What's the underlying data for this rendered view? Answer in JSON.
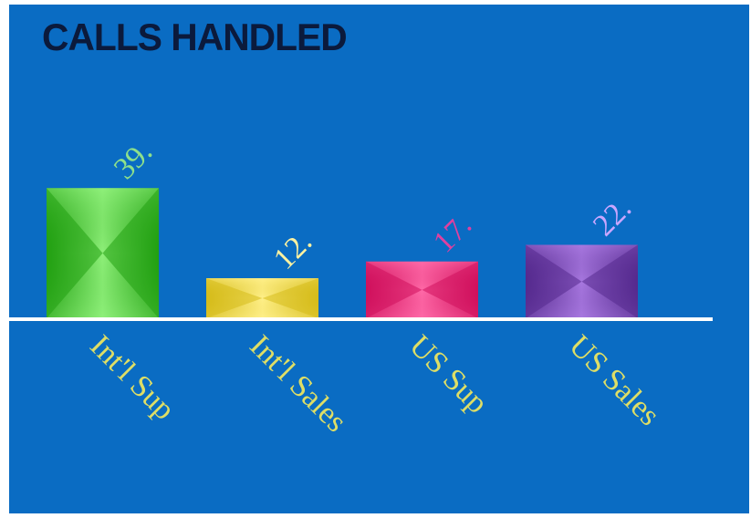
{
  "chart_data": {
    "type": "bar",
    "title": "CALLS HANDLED",
    "xlabel": "",
    "ylabel": "",
    "categories": [
      "Int'l Sup",
      "Int'l Sales",
      "US Sup",
      "US Sales"
    ],
    "values": [
      39,
      12,
      17,
      22
    ],
    "value_labels": [
      "39.",
      "12.",
      "17.",
      "22."
    ],
    "ylim": [
      0,
      45
    ],
    "grid": false,
    "legend": "none",
    "colors": {
      "background": "#0a6cc3",
      "title": "#0b1a3c",
      "axis": "#ffffff",
      "category_labels": "#dede66",
      "bars": [
        "#22a012",
        "#d6bc1a",
        "#d0105c",
        "#552a8e"
      ],
      "bar_highlights": [
        "#8ff07a",
        "#fff08a",
        "#ff6aa8",
        "#a878e0"
      ],
      "value_labels": [
        "#8ee08a",
        "#fff2a0",
        "#e040a0",
        "#c9a6ff"
      ]
    }
  }
}
